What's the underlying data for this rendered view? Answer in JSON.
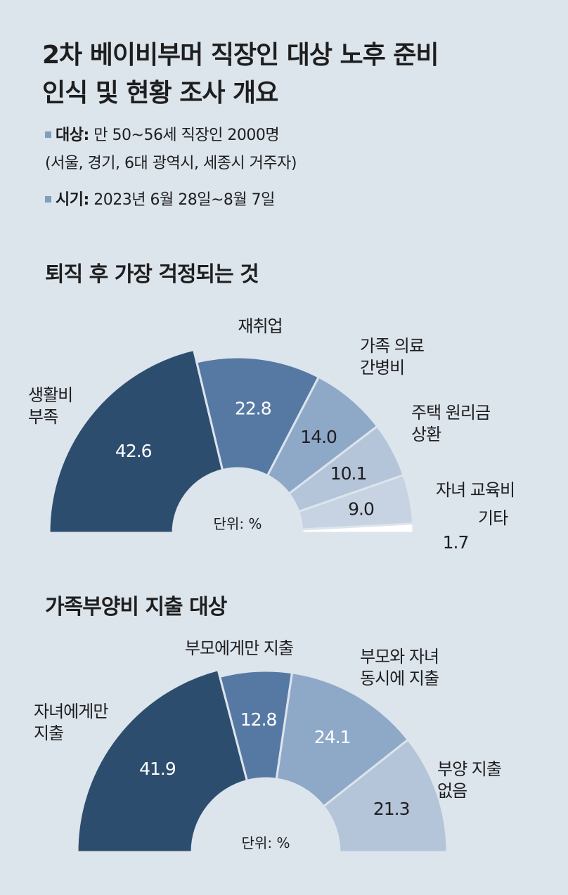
{
  "header": {
    "title_line1": "2차 베이비부머 직장인 대상 노후 준비",
    "title_line2": "인식 및 현황 조사 개요",
    "target_label": "대상:",
    "target_value": "만 50~56세 직장인 2000명",
    "target_detail": "(서울, 경기, 6대 광역시, 세종시 거주자)",
    "period_label": "시기:",
    "period_value": "2023년 6월 28일~8월 7일"
  },
  "colors": {
    "background": "#dce4ec",
    "s1": "#2d4d6e",
    "s2": "#5679a4",
    "s3": "#8ea8c8",
    "s4": "#b4c4d9",
    "s5": "#c7d3e3",
    "s6": "#ffffff"
  },
  "chart_data": [
    {
      "type": "pie",
      "title": "퇴직 후 가장 걱정되는 것",
      "unit_label": "단위: %",
      "categories": [
        "생활비 부족",
        "재취업",
        "가족 의료 간병비",
        "주택 원리금 상환",
        "자녀 교육비",
        "기타"
      ],
      "label_lines": [
        [
          "생활비",
          "부족"
        ],
        [
          "재취업"
        ],
        [
          "가족 의료",
          "간병비"
        ],
        [
          "주택 원리금",
          "상환"
        ],
        [
          "자녀 교육비"
        ],
        [
          "기타"
        ]
      ],
      "values": [
        42.6,
        22.8,
        14.0,
        10.1,
        9.0,
        1.7
      ],
      "value_labels": [
        "42.6",
        "22.8",
        "14.0",
        "10.1",
        "9.0",
        "1.7"
      ]
    },
    {
      "type": "pie",
      "title": "가족부양비 지출 대상",
      "unit_label": "단위: %",
      "categories": [
        "자녀에게만 지출",
        "부모에게만 지출",
        "부모와 자녀 동시에 지출",
        "부양 지출 없음"
      ],
      "label_lines": [
        [
          "자녀에게만",
          "지출"
        ],
        [
          "부모에게만 지출"
        ],
        [
          "부모와 자녀",
          "동시에 지출"
        ],
        [
          "부양 지출",
          "없음"
        ]
      ],
      "values": [
        41.9,
        12.8,
        24.1,
        21.3
      ],
      "value_labels": [
        "41.9",
        "12.8",
        "24.1",
        "21.3"
      ]
    }
  ]
}
